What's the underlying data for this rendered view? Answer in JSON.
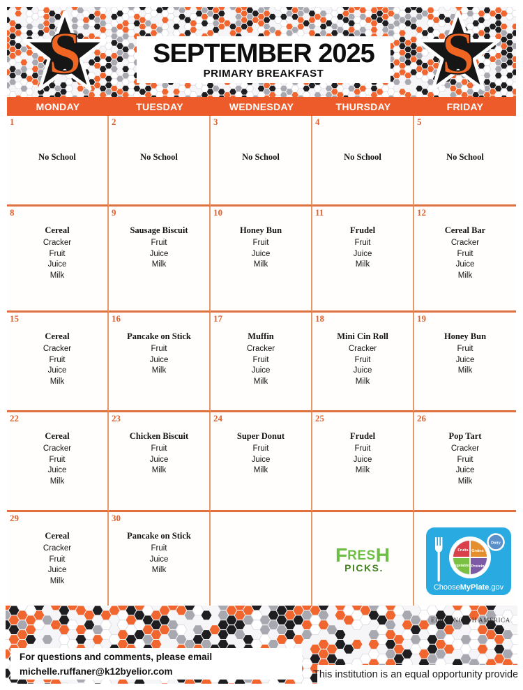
{
  "banner": {
    "title": "SEPTEMBER 2025",
    "subtitle": "PRIMARY BREAKFAST",
    "logo_letter": "S"
  },
  "weekdays": [
    "MONDAY",
    "TUESDAY",
    "WEDNESDAY",
    "THURSDAY",
    "FRIDAY"
  ],
  "weeks": [
    [
      {
        "date": "1",
        "type": "noschool",
        "title": "No School",
        "items": []
      },
      {
        "date": "2",
        "type": "noschool",
        "title": "No School",
        "items": []
      },
      {
        "date": "3",
        "type": "noschool",
        "title": "No School",
        "items": []
      },
      {
        "date": "4",
        "type": "noschool",
        "title": "No School",
        "items": []
      },
      {
        "date": "5",
        "type": "noschool",
        "title": "No School",
        "items": []
      }
    ],
    [
      {
        "date": "8",
        "type": "menu",
        "title": "Cereal",
        "items": [
          "Cracker",
          "Fruit",
          "Juice",
          "Milk"
        ]
      },
      {
        "date": "9",
        "type": "menu",
        "title": "Sausage Biscuit",
        "items": [
          "Fruit",
          "Juice",
          "Milk"
        ]
      },
      {
        "date": "10",
        "type": "menu",
        "title": "Honey Bun",
        "items": [
          "Fruit",
          "Juice",
          "Milk"
        ]
      },
      {
        "date": "11",
        "type": "menu",
        "title": "Frudel",
        "items": [
          "Fruit",
          "Juice",
          "Milk"
        ]
      },
      {
        "date": "12",
        "type": "menu",
        "title": "Cereal Bar",
        "items": [
          "Cracker",
          "Fruit",
          "Juice",
          "Milk"
        ]
      }
    ],
    [
      {
        "date": "15",
        "type": "menu",
        "title": "Cereal",
        "items": [
          "Cracker",
          "Fruit",
          "Juice",
          "Milk"
        ]
      },
      {
        "date": "16",
        "type": "menu",
        "title": "Pancake on Stick",
        "items": [
          "Fruit",
          "Juice",
          "Milk"
        ]
      },
      {
        "date": "17",
        "type": "menu",
        "title": "Muffin",
        "items": [
          "Cracker",
          "Fruit",
          "Juice",
          "Milk"
        ]
      },
      {
        "date": "18",
        "type": "menu",
        "title": "Mini Cin Roll",
        "items": [
          "Cracker",
          "Fruit",
          "Juice",
          "Milk"
        ]
      },
      {
        "date": "19",
        "type": "menu",
        "title": "Honey Bun",
        "items": [
          "Fruit",
          "Juice",
          "Milk"
        ]
      }
    ],
    [
      {
        "date": "22",
        "type": "menu",
        "title": "Cereal",
        "items": [
          "Cracker",
          "Fruit",
          "Juice",
          "Milk"
        ]
      },
      {
        "date": "23",
        "type": "menu",
        "title": "Chicken Biscuit",
        "items": [
          "Fruit",
          "Juice",
          "Milk"
        ]
      },
      {
        "date": "24",
        "type": "menu",
        "title": "Super Donut",
        "items": [
          "Fruit",
          "Juice",
          "Milk"
        ]
      },
      {
        "date": "25",
        "type": "menu",
        "title": "Frudel",
        "items": [
          "Fruit",
          "Juice",
          "Milk"
        ]
      },
      {
        "date": "26",
        "type": "menu",
        "title": "Pop Tart",
        "items": [
          "Cracker",
          "Fruit",
          "Juice",
          "Milk"
        ]
      }
    ],
    [
      {
        "date": "29",
        "type": "menu",
        "title": "Cereal",
        "items": [
          "Cracker",
          "Fruit",
          "Juice",
          "Milk"
        ]
      },
      {
        "date": "30",
        "type": "menu",
        "title": "Pancake on Stick",
        "items": [
          "Fruit",
          "Juice",
          "Milk"
        ]
      },
      {
        "date": "",
        "type": "empty",
        "title": "",
        "items": []
      },
      {
        "date": "",
        "type": "freshpicks",
        "title": "",
        "items": []
      },
      {
        "date": "",
        "type": "myplate",
        "title": "",
        "items": []
      }
    ]
  ],
  "logos": {
    "fresh_picks": {
      "top": "FRESH",
      "bottom": "PICKS."
    },
    "myplate": {
      "sections": [
        "Fruits",
        "Grains",
        "Vegetables",
        "Protein",
        "Dairy"
      ],
      "caption_choose": "Choose",
      "caption_brand": "MyPlate",
      "caption_gov": ".gov"
    }
  },
  "footer": {
    "brand": "ELIOR NORTH AMERICA",
    "contact_line1": "For questions and comments, please email",
    "contact_line2": "michelle.ruffaner@k12byelior.com",
    "equal_opportunity": "This institution is an equal opportunity provider"
  },
  "colors": {
    "header_orange": "#EE5B2B",
    "grid_vline": "#E59A68",
    "grid_hline": "#E2703C",
    "date_orange": "#E0622E",
    "hex_orange": "#F1662F",
    "hex_black": "#1E1E20",
    "hex_gray": "#A8A8B0",
    "fresh_green": "#6CBE45",
    "fresh_dark_green": "#44831E",
    "myplate_blue": "#29ABE2"
  }
}
